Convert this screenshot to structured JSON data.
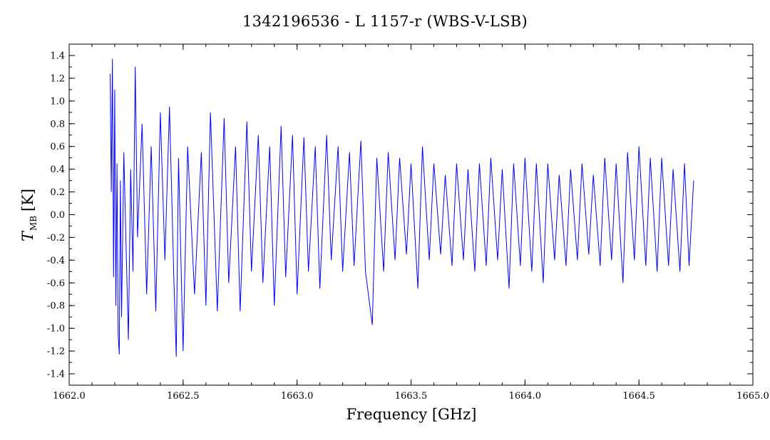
{
  "chart_data": {
    "type": "line",
    "title": "1342196536 - L 1157-r (WBS-V-LSB)",
    "xlabel": "Frequency [GHz]",
    "ylabel": "T",
    "ylabel_sub": "MB",
    "ylabel_unit": "[K]",
    "xlim": [
      1662.0,
      1665.0
    ],
    "ylim": [
      -1.5,
      1.5
    ],
    "xticks": [
      1662.0,
      1662.5,
      1663.0,
      1663.5,
      1664.0,
      1664.5,
      1665.0
    ],
    "xtick_labels": [
      "1662.0",
      "1662.5",
      "1663.0",
      "1663.5",
      "1664.0",
      "1664.5",
      "1665.0"
    ],
    "yticks": [
      -1.4,
      -1.2,
      -1.0,
      -0.8,
      -0.6,
      -0.4,
      -0.2,
      0.0,
      0.2,
      0.4,
      0.6,
      0.8,
      1.0,
      1.2,
      1.4
    ],
    "ytick_labels": [
      "-1.4",
      "-1.2",
      "-1.0",
      "-0.8",
      "-0.6",
      "-0.4",
      "-0.2",
      "0.0",
      "0.2",
      "0.4",
      "0.6",
      "0.8",
      "1.0",
      "1.2",
      "1.4"
    ],
    "grid": false,
    "series": [
      {
        "color": "#0000ff",
        "x_start": 1662.18,
        "x_end": 1664.74,
        "points": [
          [
            1662.18,
            1.24
          ],
          [
            1662.185,
            0.2
          ],
          [
            1662.19,
            1.37
          ],
          [
            1662.195,
            -0.55
          ],
          [
            1662.2,
            1.1
          ],
          [
            1662.205,
            -0.8
          ],
          [
            1662.21,
            0.45
          ],
          [
            1662.215,
            -1.05
          ],
          [
            1662.22,
            -1.23
          ],
          [
            1662.225,
            0.3
          ],
          [
            1662.23,
            -0.9
          ],
          [
            1662.24,
            0.55
          ],
          [
            1662.25,
            -0.3
          ],
          [
            1662.26,
            -1.1
          ],
          [
            1662.27,
            0.4
          ],
          [
            1662.28,
            -0.5
          ],
          [
            1662.29,
            1.3
          ],
          [
            1662.3,
            -0.2
          ],
          [
            1662.32,
            0.8
          ],
          [
            1662.34,
            -0.7
          ],
          [
            1662.36,
            0.6
          ],
          [
            1662.38,
            -0.85
          ],
          [
            1662.4,
            0.9
          ],
          [
            1662.42,
            -0.4
          ],
          [
            1662.44,
            0.95
          ],
          [
            1662.46,
            -0.6
          ],
          [
            1662.47,
            -1.25
          ],
          [
            1662.48,
            0.5
          ],
          [
            1662.5,
            -1.2
          ],
          [
            1662.52,
            0.6
          ],
          [
            1662.55,
            -0.7
          ],
          [
            1662.58,
            0.55
          ],
          [
            1662.6,
            -0.8
          ],
          [
            1662.62,
            0.9
          ],
          [
            1662.65,
            -0.85
          ],
          [
            1662.68,
            0.85
          ],
          [
            1662.7,
            -0.6
          ],
          [
            1662.73,
            0.6
          ],
          [
            1662.75,
            -0.85
          ],
          [
            1662.78,
            0.82
          ],
          [
            1662.8,
            -0.5
          ],
          [
            1662.83,
            0.7
          ],
          [
            1662.85,
            -0.6
          ],
          [
            1662.88,
            0.6
          ],
          [
            1662.9,
            -0.8
          ],
          [
            1662.93,
            0.78
          ],
          [
            1662.95,
            -0.55
          ],
          [
            1662.98,
            0.7
          ],
          [
            1663.0,
            -0.7
          ],
          [
            1663.03,
            0.68
          ],
          [
            1663.05,
            -0.5
          ],
          [
            1663.08,
            0.6
          ],
          [
            1663.1,
            -0.65
          ],
          [
            1663.13,
            0.7
          ],
          [
            1663.15,
            -0.4
          ],
          [
            1663.18,
            0.6
          ],
          [
            1663.2,
            -0.5
          ],
          [
            1663.23,
            0.55
          ],
          [
            1663.25,
            -0.45
          ],
          [
            1663.28,
            0.65
          ],
          [
            1663.3,
            -0.5
          ],
          [
            1663.33,
            -0.97
          ],
          [
            1663.35,
            0.5
          ],
          [
            1663.38,
            -0.5
          ],
          [
            1663.4,
            0.55
          ],
          [
            1663.43,
            -0.4
          ],
          [
            1663.45,
            0.5
          ],
          [
            1663.48,
            -0.35
          ],
          [
            1663.5,
            0.45
          ],
          [
            1663.53,
            -0.65
          ],
          [
            1663.55,
            0.6
          ],
          [
            1663.58,
            -0.4
          ],
          [
            1663.6,
            0.45
          ],
          [
            1663.63,
            -0.35
          ],
          [
            1663.65,
            0.35
          ],
          [
            1663.68,
            -0.45
          ],
          [
            1663.7,
            0.45
          ],
          [
            1663.73,
            -0.4
          ],
          [
            1663.75,
            0.4
          ],
          [
            1663.78,
            -0.5
          ],
          [
            1663.8,
            0.45
          ],
          [
            1663.83,
            -0.45
          ],
          [
            1663.85,
            0.5
          ],
          [
            1663.88,
            -0.4
          ],
          [
            1663.9,
            0.4
          ],
          [
            1663.93,
            -0.65
          ],
          [
            1663.95,
            0.45
          ],
          [
            1663.98,
            -0.45
          ],
          [
            1664.0,
            0.5
          ],
          [
            1664.03,
            -0.5
          ],
          [
            1664.05,
            0.45
          ],
          [
            1664.08,
            -0.6
          ],
          [
            1664.1,
            0.45
          ],
          [
            1664.13,
            -0.4
          ],
          [
            1664.15,
            0.35
          ],
          [
            1664.18,
            -0.45
          ],
          [
            1664.2,
            0.4
          ],
          [
            1664.23,
            -0.4
          ],
          [
            1664.25,
            0.45
          ],
          [
            1664.28,
            -0.35
          ],
          [
            1664.3,
            0.35
          ],
          [
            1664.33,
            -0.45
          ],
          [
            1664.35,
            0.5
          ],
          [
            1664.38,
            -0.4
          ],
          [
            1664.4,
            0.45
          ],
          [
            1664.43,
            -0.6
          ],
          [
            1664.45,
            0.55
          ],
          [
            1664.48,
            -0.4
          ],
          [
            1664.5,
            0.6
          ],
          [
            1664.53,
            -0.45
          ],
          [
            1664.55,
            0.5
          ],
          [
            1664.58,
            -0.5
          ],
          [
            1664.6,
            0.5
          ],
          [
            1664.63,
            -0.45
          ],
          [
            1664.65,
            0.4
          ],
          [
            1664.68,
            -0.5
          ],
          [
            1664.7,
            0.45
          ],
          [
            1664.72,
            -0.45
          ],
          [
            1664.74,
            0.3
          ]
        ]
      }
    ]
  }
}
